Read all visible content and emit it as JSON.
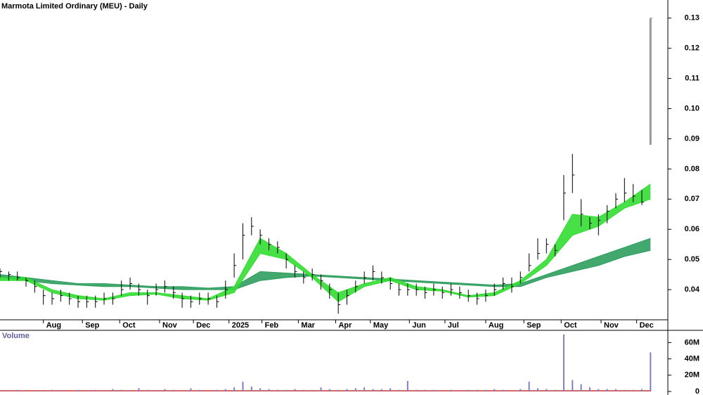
{
  "chart_data": [
    {
      "type": "ohlc",
      "title": "Marmota Limited Ordinary (MEU) - Daily",
      "color": "#000000",
      "x": [
        0,
        1,
        2,
        3,
        4,
        5,
        6,
        7,
        8,
        9,
        10,
        11,
        12,
        13,
        14,
        15,
        16,
        17,
        18,
        19,
        20,
        21,
        22,
        23,
        24,
        25,
        26,
        27,
        28,
        29,
        30,
        31,
        32,
        33,
        34,
        35,
        36,
        37,
        38,
        39,
        40,
        41,
        42,
        43,
        44,
        45,
        46,
        47,
        48,
        49,
        50,
        51,
        52,
        53,
        54,
        55,
        56,
        57,
        58,
        59,
        60,
        61,
        62,
        63,
        64,
        65,
        66,
        67,
        68,
        69,
        70,
        71,
        72,
        73,
        74,
        75
      ],
      "high": [
        0.047,
        0.046,
        0.046,
        0.044,
        0.043,
        0.04,
        0.039,
        0.04,
        0.039,
        0.038,
        0.038,
        0.038,
        0.039,
        0.039,
        0.043,
        0.044,
        0.042,
        0.04,
        0.042,
        0.043,
        0.041,
        0.039,
        0.038,
        0.039,
        0.039,
        0.038,
        0.043,
        0.052,
        0.062,
        0.064,
        0.06,
        0.057,
        0.056,
        0.052,
        0.048,
        0.046,
        0.047,
        0.045,
        0.042,
        0.039,
        0.04,
        0.043,
        0.046,
        0.048,
        0.046,
        0.044,
        0.042,
        0.042,
        0.042,
        0.041,
        0.042,
        0.041,
        0.042,
        0.041,
        0.04,
        0.039,
        0.04,
        0.042,
        0.044,
        0.044,
        0.046,
        0.052,
        0.057,
        0.057,
        0.055,
        0.078,
        0.085,
        0.07,
        0.064,
        0.065,
        0.068,
        0.072,
        0.077,
        0.075,
        0.073,
        0.13
      ],
      "low": [
        0.044,
        0.043,
        0.043,
        0.041,
        0.039,
        0.035,
        0.035,
        0.036,
        0.035,
        0.034,
        0.034,
        0.034,
        0.035,
        0.035,
        0.038,
        0.04,
        0.038,
        0.035,
        0.038,
        0.039,
        0.037,
        0.034,
        0.034,
        0.035,
        0.035,
        0.034,
        0.037,
        0.044,
        0.05,
        0.058,
        0.055,
        0.053,
        0.052,
        0.047,
        0.044,
        0.042,
        0.043,
        0.04,
        0.037,
        0.032,
        0.035,
        0.039,
        0.042,
        0.043,
        0.042,
        0.04,
        0.038,
        0.038,
        0.038,
        0.037,
        0.038,
        0.037,
        0.038,
        0.037,
        0.036,
        0.035,
        0.036,
        0.038,
        0.04,
        0.039,
        0.042,
        0.046,
        0.05,
        0.052,
        0.051,
        0.063,
        0.072,
        0.061,
        0.06,
        0.058,
        0.062,
        0.067,
        0.069,
        0.069,
        0.068,
        0.088
      ],
      "close": [
        0.046,
        0.045,
        0.044,
        0.043,
        0.041,
        0.038,
        0.037,
        0.038,
        0.037,
        0.036,
        0.036,
        0.036,
        0.037,
        0.037,
        0.04,
        0.042,
        0.04,
        0.038,
        0.04,
        0.041,
        0.039,
        0.037,
        0.036,
        0.037,
        0.037,
        0.036,
        0.04,
        0.048,
        0.058,
        0.061,
        0.058,
        0.055,
        0.054,
        0.05,
        0.046,
        0.044,
        0.045,
        0.043,
        0.04,
        0.035,
        0.038,
        0.041,
        0.044,
        0.046,
        0.044,
        0.042,
        0.04,
        0.04,
        0.04,
        0.039,
        0.04,
        0.039,
        0.04,
        0.039,
        0.038,
        0.037,
        0.038,
        0.04,
        0.042,
        0.041,
        0.044,
        0.048,
        0.052,
        0.055,
        0.053,
        0.072,
        0.078,
        0.065,
        0.062,
        0.063,
        0.066,
        0.07,
        0.072,
        0.071,
        0.069,
        0.13
      ],
      "bands": [
        {
          "color": "#2e9e5e",
          "x": [
            0,
            3,
            6,
            9,
            12,
            15,
            18,
            21,
            24,
            27,
            30,
            33,
            36,
            39,
            42,
            45,
            48,
            51,
            54,
            57,
            60,
            63,
            66,
            69,
            72,
            75
          ],
          "upper": [
            0.045,
            0.044,
            0.043,
            0.042,
            0.042,
            0.0415,
            0.041,
            0.041,
            0.0405,
            0.041,
            0.046,
            0.0455,
            0.045,
            0.0445,
            0.044,
            0.0435,
            0.043,
            0.0425,
            0.042,
            0.0415,
            0.042,
            0.045,
            0.048,
            0.051,
            0.054,
            0.057
          ],
          "lower": [
            0.044,
            0.043,
            0.042,
            0.0415,
            0.041,
            0.041,
            0.0405,
            0.04,
            0.04,
            0.04,
            0.043,
            0.044,
            0.0445,
            0.044,
            0.0435,
            0.043,
            0.0425,
            0.042,
            0.0415,
            0.041,
            0.041,
            0.044,
            0.046,
            0.048,
            0.051,
            0.053
          ]
        },
        {
          "color": "#33dd33",
          "x": [
            0,
            3,
            6,
            9,
            12,
            15,
            18,
            21,
            24,
            27,
            30,
            33,
            36,
            39,
            42,
            45,
            48,
            51,
            54,
            57,
            60,
            63,
            66,
            69,
            72,
            75
          ],
          "upper": [
            0.044,
            0.044,
            0.04,
            0.038,
            0.037,
            0.039,
            0.039,
            0.038,
            0.037,
            0.041,
            0.057,
            0.052,
            0.045,
            0.039,
            0.042,
            0.044,
            0.041,
            0.04,
            0.038,
            0.039,
            0.043,
            0.05,
            0.065,
            0.064,
            0.069,
            0.075
          ],
          "lower": [
            0.043,
            0.043,
            0.039,
            0.037,
            0.0365,
            0.038,
            0.0385,
            0.037,
            0.0365,
            0.039,
            0.052,
            0.05,
            0.044,
            0.036,
            0.041,
            0.043,
            0.04,
            0.0395,
            0.0375,
            0.038,
            0.042,
            0.048,
            0.058,
            0.061,
            0.067,
            0.07
          ]
        }
      ],
      "xlim": [
        0,
        77
      ],
      "ylim": [
        0.03,
        0.136
      ],
      "xticks": [
        {
          "value": 5.0,
          "label": "Aug"
        },
        {
          "value": 9.5,
          "label": "Sep"
        },
        {
          "value": 13.8,
          "label": "Oct"
        },
        {
          "value": 18.4,
          "label": "Nov"
        },
        {
          "value": 22.3,
          "label": "Dec"
        },
        {
          "value": 26.4,
          "label": "2025"
        },
        {
          "value": 30.2,
          "label": "Feb"
        },
        {
          "value": 34.4,
          "label": "Mar"
        },
        {
          "value": 38.7,
          "label": "Apr"
        },
        {
          "value": 42.7,
          "label": "May"
        },
        {
          "value": 47.2,
          "label": "Jun"
        },
        {
          "value": 51.3,
          "label": "Jul"
        },
        {
          "value": 56.0,
          "label": "Aug"
        },
        {
          "value": 60.4,
          "label": "Sep"
        },
        {
          "value": 64.7,
          "label": "Oct"
        },
        {
          "value": 69.3,
          "label": "Nov"
        },
        {
          "value": 73.4,
          "label": "Dec"
        }
      ],
      "yticks": [
        0.04,
        0.05,
        0.06,
        0.07,
        0.08,
        0.09,
        {
          "value": 0.1,
          "label": "0.10"
        },
        0.11,
        0.12,
        0.13
      ]
    },
    {
      "type": "bar",
      "title": "Volume",
      "color": "#8080c0",
      "x": [
        0,
        1,
        2,
        3,
        4,
        5,
        6,
        7,
        8,
        9,
        10,
        11,
        12,
        13,
        14,
        15,
        16,
        17,
        18,
        19,
        20,
        21,
        22,
        23,
        24,
        25,
        26,
        27,
        28,
        29,
        30,
        31,
        32,
        33,
        34,
        35,
        36,
        37,
        38,
        39,
        40,
        41,
        42,
        43,
        44,
        45,
        46,
        47,
        48,
        49,
        50,
        51,
        52,
        53,
        54,
        55,
        56,
        57,
        58,
        59,
        60,
        61,
        62,
        63,
        64,
        65,
        66,
        67,
        68,
        69,
        70,
        71,
        72,
        73,
        74,
        75
      ],
      "values": [
        1000000,
        1000000,
        2000000,
        1000000,
        1000000,
        1000000,
        2000000,
        1000000,
        1000000,
        2000000,
        1000000,
        2000000,
        1000000,
        3000000,
        2000000,
        1000000,
        4000000,
        2000000,
        1000000,
        3000000,
        2000000,
        1000000,
        4000000,
        2000000,
        1000000,
        2000000,
        3000000,
        5000000,
        12000000,
        6000000,
        4000000,
        3000000,
        2000000,
        2000000,
        3000000,
        2000000,
        2000000,
        5000000,
        3000000,
        2000000,
        3000000,
        4000000,
        5000000,
        3000000,
        3000000,
        4000000,
        2000000,
        13000000,
        2000000,
        2000000,
        2000000,
        1000000,
        2000000,
        1000000,
        2000000,
        2000000,
        2000000,
        3000000,
        2000000,
        1000000,
        3000000,
        12000000,
        4000000,
        3000000,
        2000000,
        70000000,
        14000000,
        9000000,
        5000000,
        3000000,
        3000000,
        3000000,
        2000000,
        2000000,
        3000000,
        48000000
      ],
      "xlim": [
        0,
        77
      ],
      "ylim": [
        0,
        75000000
      ],
      "yticks": [
        {
          "value": 0,
          "label": "0"
        },
        {
          "value": 20000000,
          "label": "20M"
        },
        {
          "value": 40000000,
          "label": "40M"
        },
        {
          "value": 60000000,
          "label": "60M"
        }
      ]
    }
  ]
}
